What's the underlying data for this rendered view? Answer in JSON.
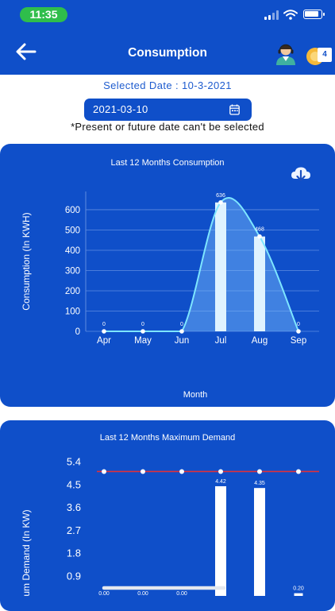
{
  "status": {
    "time": "11:35"
  },
  "appbar": {
    "title": "Consumption",
    "notification_count": "4"
  },
  "date": {
    "selected_label": "Selected Date : 10-3-2021",
    "field_value": "2021-03-10",
    "note": "*Present or future date can't be selected"
  },
  "chart_data": [
    {
      "type": "bar",
      "title": "Last 12 Months Consumption",
      "xlabel": "Month",
      "ylabel": "Consumption (In KWH)",
      "categories": [
        "Apr",
        "May",
        "Jun",
        "Jul",
        "Aug",
        "Sep"
      ],
      "values": [
        0,
        0,
        0,
        636,
        468,
        0
      ],
      "value_labels": [
        "0",
        "0",
        "0",
        "636",
        "468",
        "0"
      ],
      "y_ticks": [
        "0",
        "100",
        "200",
        "300",
        "400",
        "500",
        "600"
      ],
      "ylim": [
        0,
        690
      ],
      "grid": true,
      "overlay": "smoothed area line"
    },
    {
      "type": "bar",
      "title": "Last 12 Months Maximum Demand",
      "ylabel": "mum Demand (In KW)",
      "categories": [
        "",
        "",
        "",
        "",
        "",
        ""
      ],
      "values": [
        0,
        0,
        0,
        4.42,
        4.35,
        0.2
      ],
      "value_labels": [
        "0.00",
        "0.00",
        "0.00",
        "4.42",
        "4.35",
        "0.20"
      ],
      "y_ticks": [
        "0.9",
        "1.8",
        "2.7",
        "3.6",
        "4.5",
        "5.4"
      ],
      "ylim": [
        0,
        5.4
      ],
      "reference_line": 5.0,
      "reference_color": "#e0303a"
    }
  ],
  "colors": {
    "brand": "#0f4fc9",
    "status_green": "#2fbe4b"
  }
}
